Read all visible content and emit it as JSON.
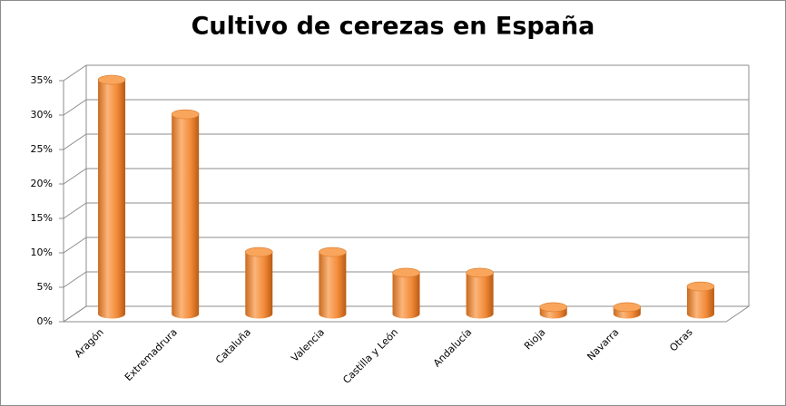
{
  "chart_data": {
    "type": "bar",
    "title": "Cultivo de cerezas en España",
    "categories": [
      "Aragón",
      "Extremadrura",
      "Cataluña",
      "Valencia",
      "Castilla y León",
      "Andalucía",
      "Rioja",
      "Navarra",
      "Otras"
    ],
    "values": [
      34,
      29,
      9,
      9,
      6,
      6,
      1,
      1,
      4
    ],
    "color": "#f79646",
    "ylim": [
      0,
      35
    ],
    "yticks": [
      {
        "value": 0,
        "label": "0%"
      },
      {
        "value": 5,
        "label": "5%"
      },
      {
        "value": 10,
        "label": "10%"
      },
      {
        "value": 15,
        "label": "15%"
      },
      {
        "value": 20,
        "label": "20%"
      },
      {
        "value": 25,
        "label": "25%"
      },
      {
        "value": 30,
        "label": "30%"
      },
      {
        "value": 35,
        "label": "35%"
      }
    ],
    "grid": true
  }
}
